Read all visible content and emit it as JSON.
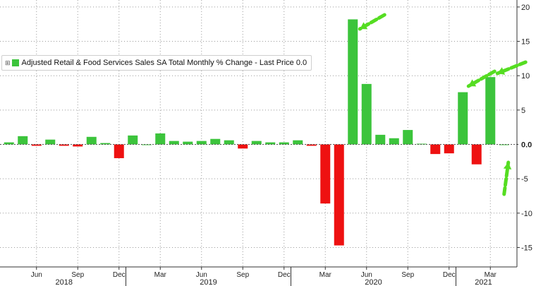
{
  "legend": {
    "toggle": "⊞",
    "label": "Adjusted Retail & Food Services Sales SA Total Monthly % Change - Last Price 0.0"
  },
  "colors": {
    "positive": "#3cc43c",
    "negative": "#ee1111",
    "arrow": "#55dd22"
  },
  "chart_data": {
    "type": "bar",
    "ylim": [
      -17.5,
      20
    ],
    "y_ticks": [
      20,
      15,
      10,
      5,
      0,
      -5,
      -10,
      -15
    ],
    "y_tick_labels": [
      "20",
      "15",
      "10",
      "5",
      "0.0",
      "-5",
      "-10",
      "-15"
    ],
    "last_value_label": "0.0",
    "grid": true,
    "legend_position": "top-left",
    "categories": [
      "2018-04",
      "2018-05",
      "2018-06",
      "2018-07",
      "2018-08",
      "2018-09",
      "2018-10",
      "2018-11",
      "2018-12",
      "2019-01",
      "2019-02",
      "2019-03",
      "2019-04",
      "2019-05",
      "2019-06",
      "2019-07",
      "2019-08",
      "2019-09",
      "2019-10",
      "2019-11",
      "2019-12",
      "2020-01",
      "2020-02",
      "2020-03",
      "2020-04",
      "2020-05",
      "2020-06",
      "2020-07",
      "2020-08",
      "2020-09",
      "2020-10",
      "2020-11",
      "2020-12",
      "2021-01",
      "2021-02",
      "2021-03",
      "2021-04"
    ],
    "values": [
      0.3,
      1.2,
      -0.2,
      0.7,
      -0.2,
      -0.3,
      1.1,
      0.2,
      -2.0,
      1.3,
      0.0,
      1.6,
      0.5,
      0.4,
      0.5,
      0.8,
      0.6,
      -0.6,
      0.5,
      0.3,
      0.3,
      0.6,
      -0.2,
      -8.6,
      -14.7,
      18.2,
      8.8,
      1.4,
      0.9,
      2.1,
      0.1,
      -1.4,
      -1.3,
      7.6,
      -2.9,
      9.8,
      0.0
    ],
    "month_ticks": [
      "Jun",
      "Sep",
      "Dec",
      "Mar",
      "Jun",
      "Sep",
      "Dec",
      "Mar",
      "Jun",
      "Sep",
      "Dec",
      "Mar"
    ],
    "year_labels": [
      "2018",
      "2019",
      "2020",
      "2021"
    ]
  }
}
